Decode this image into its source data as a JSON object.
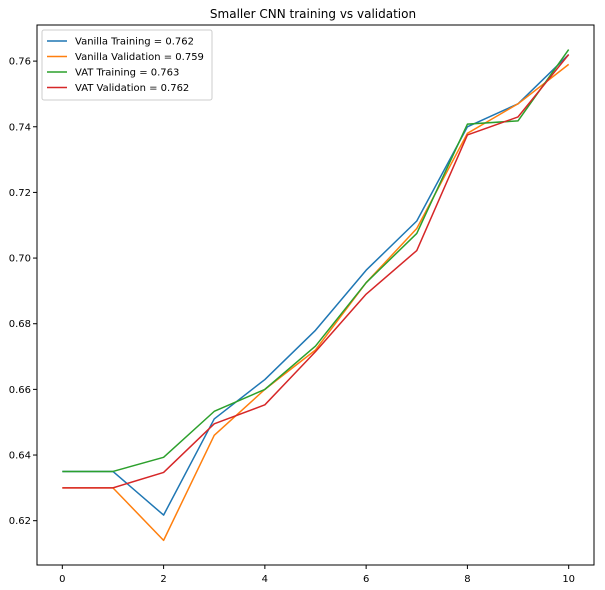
{
  "chart_data": {
    "type": "line",
    "title": "Smaller CNN training vs validation",
    "xlabel": "",
    "ylabel": "",
    "xlim": [
      -0.5,
      10.5
    ],
    "ylim": [
      0.6065,
      0.771
    ],
    "xticks": [
      0,
      2,
      4,
      6,
      8,
      10
    ],
    "yticks": [
      0.62,
      0.64,
      0.66,
      0.68,
      0.7,
      0.72,
      0.74,
      0.76
    ],
    "grid": false,
    "legend_position": "top-left",
    "x": [
      0,
      1,
      2,
      3,
      4,
      5,
      6,
      7,
      8,
      9,
      10
    ],
    "series": [
      {
        "name": "Vanilla Training = 0.762",
        "color": "#1f77b4",
        "values": [
          0.635,
          0.635,
          0.6217,
          0.651,
          0.663,
          0.678,
          0.6963,
          0.7113,
          0.74,
          0.747,
          0.762
        ]
      },
      {
        "name": "Vanilla Validation = 0.759",
        "color": "#ff7f0e",
        "values": [
          0.63,
          0.63,
          0.614,
          0.646,
          0.66,
          0.672,
          0.6925,
          0.709,
          0.738,
          0.747,
          0.759
        ]
      },
      {
        "name": "VAT Training = 0.763",
        "color": "#2ca02c",
        "values": [
          0.635,
          0.635,
          0.6393,
          0.6533,
          0.66,
          0.6732,
          0.6925,
          0.7075,
          0.7408,
          0.7418,
          0.7635
        ]
      },
      {
        "name": "VAT Validation = 0.762",
        "color": "#d62728",
        "values": [
          0.63,
          0.63,
          0.6347,
          0.6495,
          0.6553,
          0.6715,
          0.689,
          0.7023,
          0.7375,
          0.743,
          0.762
        ]
      }
    ]
  }
}
